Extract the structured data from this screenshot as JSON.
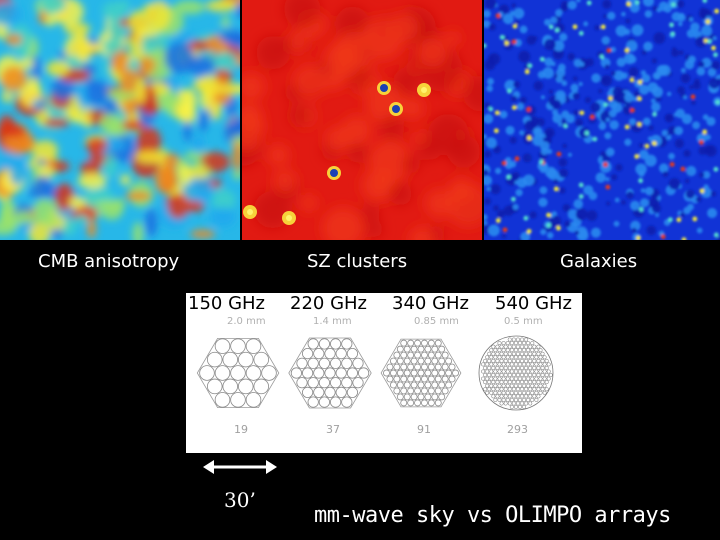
{
  "maps": [
    {
      "caption": "CMB anisotropy",
      "colormap": "jet",
      "base_color": "#27b7e8"
    },
    {
      "caption": "SZ clusters",
      "colormap": "hot-red",
      "base_color": "#e11a12"
    },
    {
      "caption": "Galaxies",
      "colormap": "blue",
      "base_color": "#1133d6"
    }
  ],
  "arrays": [
    {
      "frequency": "150 GHz",
      "beam": "2.0 mm",
      "detectors": "19"
    },
    {
      "frequency": "220 GHz",
      "beam": "1.4 mm",
      "detectors": "37"
    },
    {
      "frequency": "340 GHz",
      "beam": "0.85 mm",
      "detectors": "91"
    },
    {
      "frequency": "540 GHz",
      "beam": "0.5 mm",
      "detectors": "293"
    }
  ],
  "scale": {
    "label": "30’"
  },
  "footer": {
    "text": "mm-wave sky vs OLIMPO arrays"
  }
}
